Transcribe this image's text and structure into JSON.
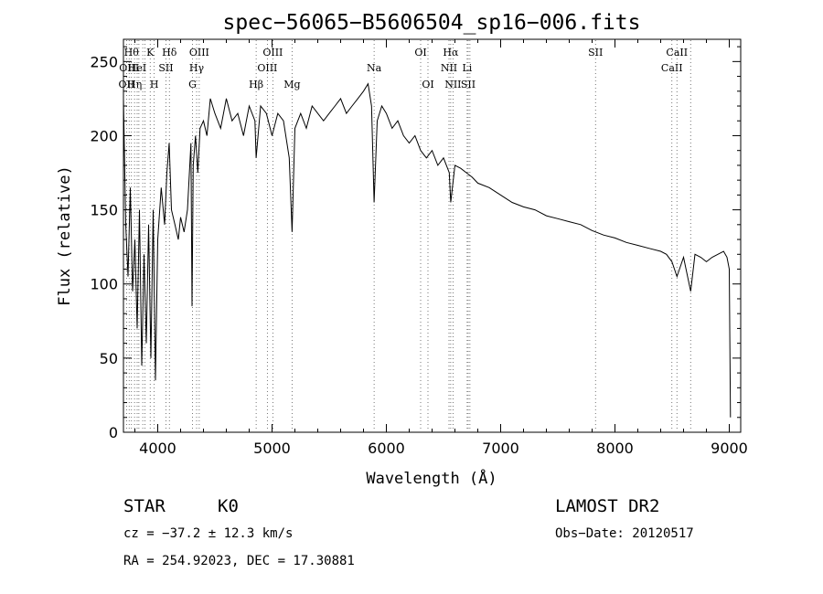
{
  "info": {
    "object_class": "STAR",
    "subclass": "K0",
    "survey": "LAMOST DR2",
    "redshift": "cz = −37.2 ± 12.3 km/s",
    "obs_date": "Obs−Date: 20120517",
    "coords": "RA = 254.92023, DEC =  17.30881"
  },
  "chart_data": {
    "type": "line",
    "title": "spec−56065−B5606504_sp16−006.fits",
    "xlabel": "Wavelength (Å)",
    "ylabel": "Flux (relative)",
    "xlim": [
      3700,
      9100
    ],
    "ylim": [
      0,
      265
    ],
    "xticks": [
      4000,
      5000,
      6000,
      7000,
      8000,
      9000
    ],
    "yticks": [
      0,
      50,
      100,
      150,
      200,
      250
    ],
    "grid": false,
    "series": [
      {
        "x": [
          3700,
          3720,
          3740,
          3760,
          3780,
          3800,
          3820,
          3840,
          3860,
          3880,
          3900,
          3920,
          3940,
          3960,
          3980,
          4000,
          4030,
          4060,
          4080,
          4100,
          4120,
          4150,
          4180,
          4200,
          4230,
          4260,
          4290,
          4300,
          4310,
          4330,
          4350,
          4370,
          4400,
          4430,
          4460,
          4500,
          4550,
          4600,
          4650,
          4700,
          4750,
          4800,
          4850,
          4861,
          4900,
          4950,
          5000,
          5050,
          5100,
          5150,
          5175,
          5200,
          5250,
          5300,
          5350,
          5400,
          5450,
          5500,
          5550,
          5600,
          5650,
          5700,
          5750,
          5800,
          5840,
          5870,
          5893,
          5920,
          5960,
          6000,
          6050,
          6100,
          6150,
          6200,
          6250,
          6300,
          6350,
          6400,
          6450,
          6500,
          6550,
          6563,
          6600,
          6650,
          6700,
          6750,
          6800,
          6900,
          7000,
          7100,
          7200,
          7300,
          7400,
          7500,
          7600,
          7700,
          7800,
          7900,
          8000,
          8100,
          8200,
          8300,
          8400,
          8450,
          8498,
          8542,
          8600,
          8662,
          8700,
          8750,
          8800,
          8850,
          8900,
          8950,
          8980,
          9000,
          9010
        ],
        "y": [
          225,
          140,
          105,
          165,
          95,
          130,
          70,
          150,
          45,
          120,
          60,
          140,
          50,
          150,
          35,
          130,
          165,
          140,
          175,
          195,
          150,
          140,
          130,
          145,
          135,
          150,
          195,
          85,
          180,
          200,
          175,
          205,
          210,
          200,
          225,
          215,
          205,
          225,
          210,
          215,
          200,
          220,
          210,
          185,
          220,
          215,
          200,
          215,
          210,
          185,
          135,
          205,
          215,
          205,
          220,
          215,
          210,
          215,
          220,
          225,
          215,
          220,
          225,
          230,
          235,
          220,
          155,
          210,
          220,
          215,
          205,
          210,
          200,
          195,
          200,
          190,
          185,
          190,
          180,
          185,
          175,
          155,
          180,
          178,
          175,
          172,
          168,
          165,
          160,
          155,
          152,
          150,
          146,
          144,
          142,
          140,
          136,
          133,
          131,
          128,
          126,
          124,
          122,
          120,
          115,
          105,
          118,
          95,
          120,
          118,
          115,
          118,
          120,
          122,
          118,
          110,
          10
        ]
      }
    ],
    "lines": [
      {
        "x": 3727,
        "label": "OII",
        "row": 3
      },
      {
        "x": 3750,
        "label": "OIII",
        "row": 2
      },
      {
        "x": 3770,
        "label": "Hθ",
        "row": 1
      },
      {
        "x": 3797,
        "label": "Hη",
        "row": 3
      },
      {
        "x": 3820,
        "label": "HeI",
        "row": 2
      },
      {
        "x": 3835,
        "label": "",
        "row": 0
      },
      {
        "x": 3869,
        "label": "",
        "row": 0
      },
      {
        "x": 3889,
        "label": "",
        "row": 0
      },
      {
        "x": 3934,
        "label": "K",
        "row": 1
      },
      {
        "x": 3969,
        "label": "H",
        "row": 3
      },
      {
        "x": 4072,
        "label": "SII",
        "row": 2
      },
      {
        "x": 4102,
        "label": "Hδ",
        "row": 1
      },
      {
        "x": 4304,
        "label": "G",
        "row": 3
      },
      {
        "x": 4340,
        "label": "Hγ",
        "row": 2
      },
      {
        "x": 4363,
        "label": "OIII",
        "row": 1
      },
      {
        "x": 4861,
        "label": "Hβ",
        "row": 3
      },
      {
        "x": 4959,
        "label": "OIII",
        "row": 2
      },
      {
        "x": 5007,
        "label": "OIII",
        "row": 1
      },
      {
        "x": 5175,
        "label": "Mg",
        "row": 3
      },
      {
        "x": 5893,
        "label": "Na",
        "row": 2
      },
      {
        "x": 6300,
        "label": "OI",
        "row": 1
      },
      {
        "x": 6364,
        "label": "OI",
        "row": 3
      },
      {
        "x": 6548,
        "label": "NII",
        "row": 2
      },
      {
        "x": 6563,
        "label": "Hα",
        "row": 1
      },
      {
        "x": 6583,
        "label": "NII",
        "row": 3
      },
      {
        "x": 6707,
        "label": "Li",
        "row": 2
      },
      {
        "x": 6716,
        "label": "SII",
        "row": 3
      },
      {
        "x": 6731,
        "label": "",
        "row": 0
      },
      {
        "x": 7830,
        "label": "SII",
        "row": 1
      },
      {
        "x": 8498,
        "label": "CaII",
        "row": 2
      },
      {
        "x": 8542,
        "label": "CaII",
        "row": 1
      },
      {
        "x": 8662,
        "label": "",
        "row": 0
      }
    ]
  }
}
